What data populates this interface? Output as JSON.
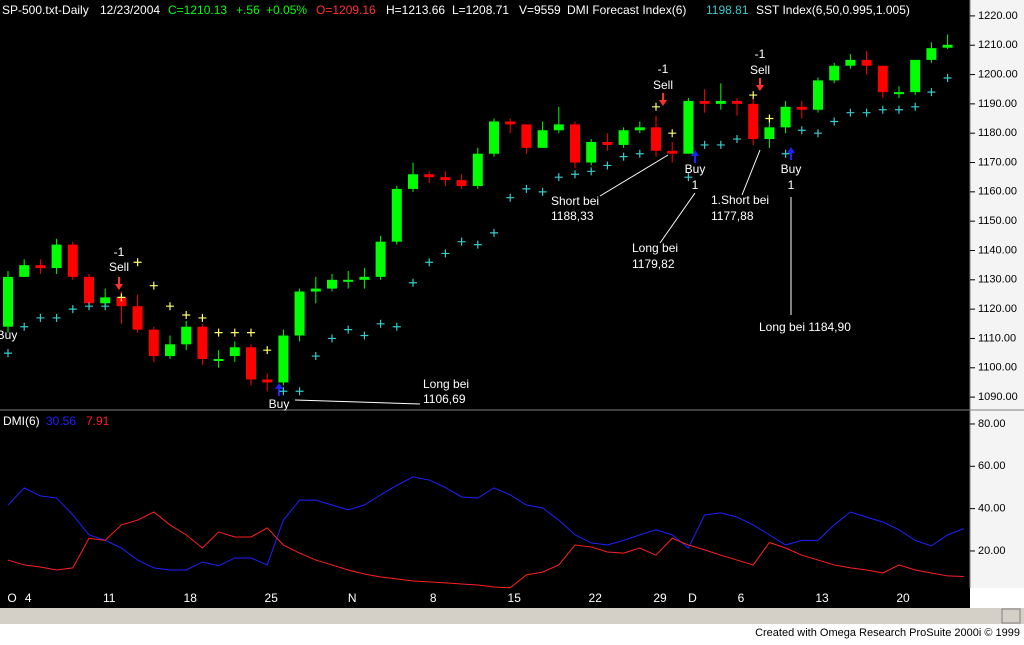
{
  "chart_data": [
    {
      "type": "candlestick",
      "header": [
        "SP-500.txt-Daily",
        "12/23/2004",
        "C=1210.13",
        "+.56",
        "+0.05%",
        "O=1209.16",
        "H=1213.66",
        "L=1208.71",
        "V=9559",
        "DMI Forecast Index(6)"
      ],
      "categories": [
        "O",
        "4",
        null,
        null,
        null,
        null,
        "11",
        null,
        null,
        null,
        null,
        "18",
        null,
        null,
        null,
        null,
        "25",
        null,
        null,
        null,
        null,
        "N",
        null,
        null,
        null,
        null,
        "8",
        null,
        null,
        null,
        null,
        "15",
        null,
        null,
        null,
        null,
        "22",
        null,
        null,
        null,
        "29",
        null,
        "D",
        null,
        null,
        "6",
        null,
        null,
        null,
        null,
        "13",
        null,
        null,
        null,
        null,
        "20",
        null,
        null,
        null
      ],
      "open": [
        1114,
        1131,
        1135,
        1134,
        1142,
        1131,
        1122,
        1124,
        1121,
        1113,
        1104,
        1108,
        1114,
        1103,
        1104,
        1107,
        1096,
        1095,
        1111,
        1126,
        1127,
        1130,
        1130,
        1131,
        1143,
        1161,
        1166,
        1165,
        1164,
        1162,
        1173,
        1184,
        1183,
        1175,
        1181,
        1183,
        1170,
        1177,
        1176,
        1181,
        1182,
        1174,
        1173,
        1191,
        1190,
        1191,
        1190,
        1178,
        1182,
        1189,
        1188,
        1198,
        1203,
        1205,
        1203,
        1194,
        1194,
        1205,
        1209.16
      ],
      "high": [
        1133,
        1137,
        1137,
        1144,
        1143,
        1132,
        1127,
        1126,
        1125,
        1114,
        1111,
        1116,
        1115,
        1106,
        1109,
        1108,
        1098,
        1113,
        1127,
        1131,
        1132,
        1133,
        1134,
        1145,
        1162,
        1170,
        1167,
        1167,
        1166,
        1175,
        1185,
        1185,
        1183,
        1184,
        1189,
        1184,
        1178,
        1180,
        1182,
        1184,
        1186,
        1177,
        1192,
        1195,
        1197,
        1192,
        1192,
        1185,
        1191,
        1191,
        1199,
        1204,
        1207,
        1208,
        1203,
        1196,
        1205,
        1211,
        1213.66
      ],
      "low": [
        1112,
        1131,
        1132,
        1132,
        1130,
        1120,
        1121,
        1115,
        1112,
        1102,
        1103,
        1106,
        1101,
        1100,
        1102,
        1094,
        1092,
        1094,
        1109,
        1122,
        1126,
        1127,
        1127,
        1130,
        1142,
        1160,
        1163,
        1162,
        1161,
        1161,
        1172,
        1180,
        1173,
        1175,
        1180,
        1168,
        1169,
        1174,
        1175,
        1180,
        1172,
        1170,
        1173,
        1187,
        1188,
        1186,
        1176,
        1175,
        1180,
        1185,
        1187,
        1197,
        1202,
        1200,
        1192,
        1192,
        1193,
        1204,
        1208.71
      ],
      "close": [
        1131,
        1135,
        1134,
        1142,
        1131,
        1122,
        1124,
        1121,
        1113,
        1104,
        1108,
        1114,
        1103,
        1103,
        1107,
        1096,
        1095,
        1111,
        1126,
        1127,
        1130,
        1130,
        1131,
        1143,
        1161,
        1166,
        1165,
        1164,
        1162,
        1173,
        1184,
        1183,
        1175,
        1181,
        1183,
        1170,
        1177,
        1176,
        1181,
        1182,
        1174,
        1173,
        1191,
        1190,
        1191,
        1190,
        1178,
        1182,
        1189,
        1188,
        1198,
        1203,
        1205,
        1203,
        1194,
        1194,
        1205,
        1209,
        1210.13
      ],
      "up_color": "#00ff00",
      "down_color": "#ff0000",
      "series": [
        {
          "name": "SST Index(6,50,0.995,1.005)",
          "color": "#33cccc",
          "above_color": "#ffff66",
          "values": [
            1105,
            1114,
            1117,
            1117,
            1120,
            1121,
            1121,
            1124,
            1136,
            1128,
            1121,
            1118,
            1117,
            1112,
            1112,
            1112,
            1106,
            1092,
            1092,
            1104,
            1110,
            1113,
            1111,
            1115,
            1114,
            1129,
            1136,
            1139,
            1143,
            1142,
            1146,
            1158,
            1161,
            1160,
            1165,
            1166,
            1167,
            1169,
            1172,
            1173,
            1189,
            1180,
            1165,
            1176,
            1176,
            1178,
            1193,
            1185,
            1173,
            1181,
            1180,
            1184,
            1187,
            1187,
            1188,
            1188,
            1189,
            1194,
            1198.81
          ]
        }
      ],
      "annotations": [
        "Buy",
        "-1",
        "Sell",
        "Buy",
        "Long bei",
        "1106,69",
        "-1",
        "Sell",
        "Short bei",
        "1188,33",
        "Buy",
        "1",
        "Long bei",
        "1179,82",
        "-1",
        "Sell",
        "1.Short bei",
        "1177,88",
        "Buy",
        "1",
        "Long bei 1184,90"
      ],
      "ylim": [
        1085.6,
        1224.4
      ],
      "yticks": [
        {
          "value": 1090,
          "label": "1090.00"
        },
        {
          "value": 1100,
          "label": "1100.00"
        },
        {
          "value": 1110,
          "label": "1110.00"
        },
        {
          "value": 1120,
          "label": "1120.00"
        },
        {
          "value": 1130,
          "label": "1130.00"
        },
        {
          "value": 1140,
          "label": "1140.00"
        },
        {
          "value": 1150,
          "label": "1150.00"
        },
        {
          "value": 1160,
          "label": "1160.00"
        },
        {
          "value": 1170,
          "label": "1170.00"
        },
        {
          "value": 1180,
          "label": "1180.00"
        },
        {
          "value": 1190,
          "label": "1190.00"
        },
        {
          "value": 1200,
          "label": "1200.00"
        },
        {
          "value": 1210,
          "label": "1210.00"
        },
        {
          "value": 1220,
          "label": "1220.00"
        }
      ]
    },
    {
      "type": "line",
      "title": "DMI(6)",
      "series": [
        {
          "color": "#2020ff",
          "values": [
            41.7,
            49.8,
            46,
            45,
            37,
            27.6,
            25,
            21.4,
            15.7,
            12,
            11,
            11,
            14.8,
            13,
            16.7,
            16.7,
            13.4,
            34.6,
            44,
            44,
            41.7,
            39.4,
            41.7,
            46.5,
            51,
            55,
            53.5,
            50,
            45.5,
            45,
            49.8,
            46.5,
            41.7,
            40.3,
            34.6,
            27.6,
            23.8,
            22.8,
            25,
            27.6,
            30,
            27.6,
            21.4,
            37,
            38,
            36,
            32.3,
            27.6,
            22.8,
            25,
            25,
            32.3,
            38.4,
            36,
            33.7,
            30,
            25,
            22.4,
            27.6,
            30.56
          ]
        },
        {
          "color": "#ff2020",
          "values": [
            15.7,
            13.4,
            12.4,
            11,
            12,
            26,
            25,
            32.3,
            34.6,
            38.4,
            32.3,
            27.6,
            21.4,
            29,
            26.6,
            26.6,
            30.9,
            22.8,
            19,
            15.7,
            13.4,
            11,
            9.1,
            7.7,
            6.8,
            5.8,
            5.4,
            4.9,
            4.4,
            3.9,
            3,
            2.6,
            8.7,
            10,
            13.4,
            22.8,
            21.9,
            19.5,
            19,
            21.4,
            18,
            26,
            22.8,
            20.5,
            18,
            15.7,
            13.4,
            24,
            21.4,
            18,
            15.7,
            13.4,
            12,
            11,
            9.6,
            13.4,
            11,
            9.6,
            8.2,
            7.91
          ]
        }
      ],
      "ylim": [
        2.5,
        86.6
      ],
      "yticks": [
        {
          "value": 20,
          "label": "20.00"
        },
        {
          "value": 40,
          "label": "40.00"
        },
        {
          "value": 60,
          "label": "60.00"
        },
        {
          "value": 80,
          "label": "80.00"
        }
      ]
    }
  ],
  "footer": "Created with Omega Research ProSuite 2000i © 1999"
}
